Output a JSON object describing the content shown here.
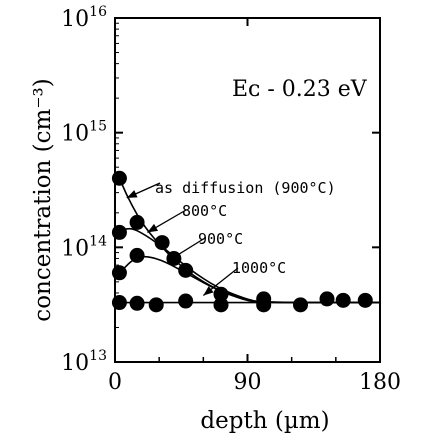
{
  "chart_data": {
    "type": "scatter",
    "title": "",
    "xlabel": "depth (µm)",
    "ylabel": "concentration (cm⁻³)",
    "xlim": [
      0,
      180
    ],
    "ylim_log10": [
      13,
      16
    ],
    "y_scale": "log",
    "grid": false,
    "x_ticks": [
      {
        "value": 0,
        "label": "0"
      },
      {
        "value": 90,
        "label": "90"
      },
      {
        "value": 180,
        "label": "180"
      }
    ],
    "y_ticks": [
      {
        "exp": 13,
        "base": "10",
        "sup": "13"
      },
      {
        "exp": 14,
        "base": "10",
        "sup": "14"
      },
      {
        "exp": 15,
        "base": "10",
        "sup": "15"
      },
      {
        "exp": 16,
        "base": "10",
        "sup": "16"
      }
    ],
    "panel_label": "Eᴄ - 0.23 eV",
    "annotations": [
      {
        "text": "as diffusion (900°C)"
      },
      {
        "text": "800°C"
      },
      {
        "text": "900°C"
      },
      {
        "text": "1000°C"
      }
    ],
    "series": [
      {
        "marker": "filled-circle",
        "points": [
          [
            3,
            400000000000000.0
          ],
          [
            3,
            135000000000000.0
          ],
          [
            3,
            60000000000000.0
          ],
          [
            3,
            33000000000000.0
          ],
          [
            15,
            165000000000000.0
          ],
          [
            15,
            85000000000000.0
          ],
          [
            15,
            32500000000000.0
          ],
          [
            28,
            31500000000000.0
          ],
          [
            32,
            110000000000000.0
          ],
          [
            40,
            80000000000000.0
          ],
          [
            48,
            63000000000000.0
          ],
          [
            48,
            34000000000000.0
          ],
          [
            72,
            39000000000000.0
          ],
          [
            72,
            31500000000000.0
          ],
          [
            101,
            35500000000000.0
          ],
          [
            101,
            31500000000000.0
          ],
          [
            126,
            31500000000000.0
          ],
          [
            144,
            35500000000000.0
          ],
          [
            155,
            34500000000000.0
          ],
          [
            170,
            34500000000000.0
          ]
        ]
      }
    ],
    "curves": [
      {
        "points": [
          [
            3,
            400000000000000.0
          ],
          [
            10,
            250000000000000.0
          ],
          [
            20,
            150000000000000.0
          ],
          [
            35,
            90000000000000.0
          ],
          [
            50,
            60000000000000.0
          ],
          [
            70,
            42000000000000.0
          ],
          [
            90,
            35000000000000.0
          ],
          [
            100,
            33000000000000.0
          ],
          [
            180,
            33000000000000.0
          ]
        ]
      },
      {
        "points": [
          [
            3,
            135000000000000.0
          ],
          [
            10,
            150000000000000.0
          ],
          [
            20,
            130000000000000.0
          ],
          [
            35,
            95000000000000.0
          ],
          [
            50,
            65000000000000.0
          ],
          [
            70,
            44000000000000.0
          ],
          [
            90,
            35000000000000.0
          ],
          [
            100,
            33000000000000.0
          ],
          [
            180,
            33000000000000.0
          ]
        ]
      },
      {
        "points": [
          [
            3,
            60000000000000.0
          ],
          [
            15,
            85000000000000.0
          ],
          [
            30,
            80000000000000.0
          ],
          [
            50,
            58000000000000.0
          ],
          [
            70,
            42000000000000.0
          ],
          [
            90,
            34000000000000.0
          ],
          [
            100,
            33000000000000.0
          ],
          [
            180,
            33000000000000.0
          ]
        ]
      },
      {
        "points": [
          [
            0,
            33000000000000.0
          ],
          [
            180,
            33000000000000.0
          ]
        ]
      }
    ]
  }
}
